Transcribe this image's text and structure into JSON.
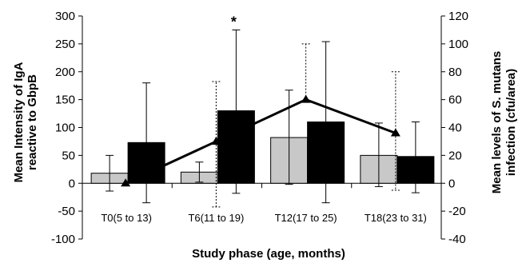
{
  "chart_data": {
    "type": "bar",
    "xlabel": "Study phase (age, months)",
    "ylabel_left_line1": "Mean Intensity of IgA",
    "ylabel_left_line2": "reactive to GbpB",
    "ylabel_right_line1": "Mean levels of S. mutans",
    "ylabel_right_line2": "infection (cfu/area)",
    "categories": [
      "T0(5 to 13)",
      "T6(11 to 19)",
      "T12(17 to 25)",
      "T18(23 to 31)"
    ],
    "ylim_left": [
      -100,
      300
    ],
    "ylim_right": [
      -40,
      120
    ],
    "yticks_left": [
      "300",
      "250",
      "200",
      "150",
      "100",
      "50",
      "0",
      "-50",
      "-100"
    ],
    "yticks_right": [
      "120",
      "100",
      "80",
      "60",
      "40",
      "20",
      "0",
      "-20",
      "-40"
    ],
    "series": [
      {
        "color": "#c8c8c8",
        "axis": "left",
        "values": [
          18,
          20,
          82,
          50
        ],
        "err_low": [
          -14,
          2,
          -2,
          -6
        ],
        "err_high": [
          50,
          38,
          167,
          108
        ]
      },
      {
        "color": "#000000",
        "axis": "left",
        "values": [
          73,
          130,
          110,
          48
        ],
        "err_low": [
          -35,
          -18,
          -35,
          -17
        ],
        "err_high": [
          180,
          275,
          254,
          110
        ]
      }
    ],
    "line_series": {
      "axis": "right",
      "color": "#000000",
      "values": [
        0,
        30,
        60,
        36
      ],
      "err_low": [
        null,
        -17,
        null,
        -5
      ],
      "err_high": [
        null,
        73,
        100,
        80
      ]
    },
    "annotations": [
      {
        "text": "*",
        "category_index": 1
      }
    ]
  }
}
